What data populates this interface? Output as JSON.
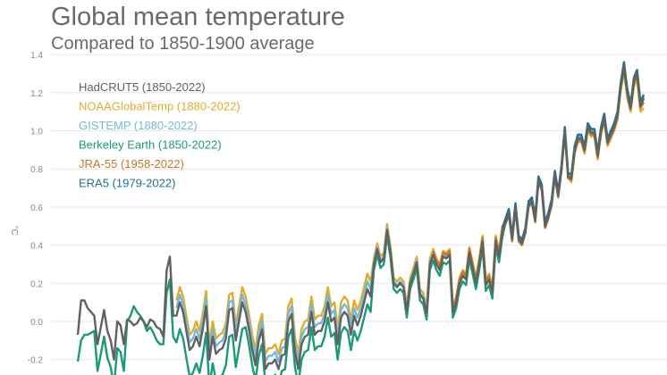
{
  "chart_data": {
    "type": "line",
    "title": "Global mean temperature",
    "subtitle": "Compared to 1850-1900 average",
    "xlabel": "",
    "ylabel": "°C",
    "xlim": [
      1850,
      2022
    ],
    "ylim": [
      -0.2,
      1.4
    ],
    "yticks": [
      "1.4",
      "1.2",
      "1.0",
      "0.8",
      "0.6",
      "0.4",
      "0.2",
      "0.0",
      "-0.2"
    ],
    "ytick_values": [
      1.4,
      1.2,
      1.0,
      0.8,
      0.6,
      0.4,
      0.2,
      0.0,
      -0.2
    ],
    "grid": true,
    "legend_position": "top-left",
    "series": [
      {
        "name": "NOAAGlobalTemp (1880-2022)",
        "color": "#e0ad2b",
        "start": 1880,
        "values": [
          0.11,
          0.18,
          0.13,
          0.03,
          -0.07,
          -0.05,
          0.0,
          -0.05,
          0.04,
          0.16,
          -0.12,
          0.0,
          -0.09,
          -0.07,
          -0.06,
          -0.01,
          0.14,
          0.15,
          -0.02,
          0.08,
          0.18,
          0.13,
          0.04,
          -0.07,
          -0.15,
          -0.02,
          0.04,
          -0.17,
          -0.14,
          -0.14,
          -0.12,
          -0.17,
          -0.1,
          -0.09,
          0.08,
          0.12,
          -0.08,
          -0.17,
          -0.04,
          0.0,
          0.01,
          0.13,
          0.01,
          0.03,
          0.03,
          0.08,
          0.18,
          0.08,
          0.1,
          -0.04,
          0.1,
          0.13,
          0.11,
          0.01,
          0.11,
          0.06,
          0.11,
          0.18,
          0.25,
          0.21,
          0.33,
          0.41,
          0.34,
          0.36,
          0.51,
          0.4,
          0.23,
          0.21,
          0.23,
          0.21,
          0.08,
          0.23,
          0.28,
          0.34,
          0.17,
          0.15,
          0.07,
          0.33,
          0.38,
          0.33,
          0.3,
          0.37,
          0.36,
          0.38,
          0.08,
          0.13,
          0.23,
          0.27,
          0.25,
          0.39,
          0.31,
          0.23,
          0.33,
          0.45,
          0.22,
          0.25,
          0.18,
          0.45,
          0.37,
          0.5,
          0.52,
          0.57,
          0.43,
          0.6,
          0.43,
          0.41,
          0.47,
          0.61,
          0.63,
          0.53,
          0.74,
          0.7,
          0.5,
          0.55,
          0.62,
          0.77,
          0.66,
          0.8,
          1.0,
          0.76,
          0.73,
          0.88,
          0.94,
          0.94,
          0.88,
          1.0,
          0.97,
          0.97,
          0.85,
          0.98,
          1.05,
          0.92,
          0.96,
          1.0,
          1.06,
          1.21,
          1.31,
          1.17,
          1.1,
          1.23,
          1.27,
          1.1,
          1.12
        ]
      },
      {
        "name": "GISTEMP (1880-2022)",
        "color": "#74b9d9",
        "start": 1880,
        "values": [
          0.07,
          0.14,
          0.09,
          -0.01,
          -0.11,
          -0.09,
          -0.04,
          -0.09,
          0.0,
          0.12,
          -0.16,
          -0.04,
          -0.13,
          -0.11,
          -0.1,
          -0.05,
          0.1,
          0.11,
          -0.06,
          0.04,
          0.14,
          0.09,
          0.0,
          -0.11,
          -0.19,
          -0.06,
          0.0,
          -0.21,
          -0.18,
          -0.18,
          -0.16,
          -0.21,
          -0.14,
          -0.13,
          0.04,
          0.08,
          -0.12,
          -0.21,
          -0.08,
          -0.04,
          -0.03,
          0.09,
          -0.03,
          -0.01,
          -0.01,
          0.04,
          0.14,
          0.04,
          0.06,
          -0.08,
          0.06,
          0.09,
          0.07,
          -0.03,
          0.07,
          0.02,
          0.07,
          0.14,
          0.21,
          0.17,
          0.31,
          0.39,
          0.32,
          0.34,
          0.49,
          0.38,
          0.21,
          0.19,
          0.21,
          0.19,
          0.06,
          0.21,
          0.26,
          0.32,
          0.15,
          0.13,
          0.05,
          0.31,
          0.36,
          0.31,
          0.28,
          0.35,
          0.34,
          0.36,
          0.06,
          0.11,
          0.21,
          0.25,
          0.23,
          0.37,
          0.29,
          0.21,
          0.31,
          0.43,
          0.2,
          0.23,
          0.16,
          0.43,
          0.35,
          0.48,
          0.53,
          0.58,
          0.44,
          0.61,
          0.44,
          0.42,
          0.48,
          0.62,
          0.64,
          0.54,
          0.75,
          0.71,
          0.51,
          0.56,
          0.63,
          0.78,
          0.67,
          0.81,
          1.01,
          0.77,
          0.76,
          0.91,
          0.97,
          0.97,
          0.91,
          1.03,
          1.0,
          1.0,
          0.88,
          1.01,
          1.08,
          0.95,
          0.99,
          1.03,
          1.09,
          1.24,
          1.35,
          1.21,
          1.13,
          1.27,
          1.31,
          1.14,
          1.18
        ]
      },
      {
        "name": "JRA-55 (1958-2022)",
        "color": "#c47a2c",
        "start": 1958,
        "values": [
          0.37,
          0.32,
          0.29,
          0.36,
          0.35,
          0.37,
          0.07,
          0.12,
          0.22,
          0.26,
          0.24,
          0.38,
          0.3,
          0.22,
          0.32,
          0.44,
          0.21,
          0.24,
          0.17,
          0.44,
          0.36,
          0.49,
          0.51,
          0.56,
          0.42,
          0.59,
          0.42,
          0.4,
          0.46,
          0.6,
          0.62,
          0.52,
          0.73,
          0.69,
          0.49,
          0.54,
          0.61,
          0.76,
          0.65,
          0.79,
          0.99,
          0.75,
          0.74,
          0.89,
          0.95,
          0.95,
          0.89,
          1.01,
          0.98,
          0.98,
          0.86,
          0.99,
          1.06,
          0.93,
          0.97,
          1.01,
          1.07,
          1.22,
          1.33,
          1.19,
          1.11,
          1.25,
          1.29,
          1.12,
          1.15
        ]
      },
      {
        "name": "ERA5 (1979-2022)",
        "color": "#1f6f98",
        "start": 1979,
        "values": [
          0.49,
          0.54,
          0.59,
          0.45,
          0.62,
          0.45,
          0.43,
          0.49,
          0.63,
          0.65,
          0.55,
          0.76,
          0.72,
          0.52,
          0.57,
          0.64,
          0.79,
          0.68,
          0.82,
          1.02,
          0.78,
          0.77,
          0.92,
          0.98,
          0.98,
          0.92,
          1.04,
          1.01,
          1.01,
          0.89,
          1.02,
          1.09,
          0.96,
          1.0,
          1.04,
          1.1,
          1.25,
          1.36,
          1.22,
          1.14,
          1.28,
          1.32,
          1.15,
          1.19
        ]
      },
      {
        "name": "Berkeley Earth (1850-2022)",
        "color": "#1b9a78",
        "start": 1850,
        "values": [
          -0.21,
          -0.1,
          -0.07,
          -0.07,
          -0.06,
          -0.05,
          -0.26,
          -0.17,
          -0.08,
          -0.19,
          -0.24,
          -0.34,
          -0.14,
          -0.16,
          -0.26,
          0.0,
          0.03,
          0.08,
          0.05,
          0.03,
          0.0,
          -0.05,
          -0.03,
          -0.06,
          -0.1,
          -0.12,
          -0.12,
          0.15,
          0.22,
          -0.08,
          -0.11,
          -0.04,
          -0.09,
          -0.19,
          -0.29,
          -0.27,
          -0.22,
          -0.27,
          -0.18,
          -0.06,
          -0.34,
          -0.22,
          -0.31,
          -0.29,
          -0.28,
          -0.23,
          -0.08,
          -0.07,
          -0.24,
          -0.14,
          -0.04,
          -0.03,
          -0.12,
          -0.23,
          -0.31,
          -0.18,
          -0.12,
          -0.33,
          -0.3,
          -0.3,
          -0.28,
          -0.33,
          -0.26,
          -0.25,
          -0.08,
          -0.04,
          -0.24,
          -0.33,
          -0.2,
          -0.16,
          -0.15,
          -0.03,
          -0.15,
          -0.13,
          -0.13,
          -0.08,
          0.02,
          -0.08,
          -0.06,
          -0.2,
          -0.06,
          -0.03,
          -0.05,
          -0.15,
          -0.05,
          -0.1,
          -0.05,
          0.02,
          0.09,
          0.05,
          0.27,
          0.35,
          0.28,
          0.3,
          0.45,
          0.34,
          0.17,
          0.15,
          0.17,
          0.15,
          0.02,
          0.17,
          0.22,
          0.28,
          0.11,
          0.09,
          0.01,
          0.27,
          0.32,
          0.27,
          0.24,
          0.31,
          0.3,
          0.32,
          0.02,
          0.07,
          0.17,
          0.21,
          0.19,
          0.33,
          0.25,
          0.17,
          0.27,
          0.39,
          0.16,
          0.19,
          0.12,
          0.39,
          0.31,
          0.44,
          0.52,
          0.57,
          0.43,
          0.6,
          0.43,
          0.41,
          0.47,
          0.61,
          0.63,
          0.53,
          0.74,
          0.7,
          0.5,
          0.55,
          0.62,
          0.77,
          0.66,
          0.8,
          1.0,
          0.76,
          0.75,
          0.9,
          0.96,
          0.96,
          0.9,
          1.02,
          0.99,
          0.99,
          0.87,
          1.0,
          1.07,
          0.94,
          0.98,
          1.02,
          1.08,
          1.23,
          1.34,
          1.2,
          1.12,
          1.26,
          1.3,
          1.13,
          1.17
        ]
      },
      {
        "name": "HadCRUT5 (1850-2022)",
        "color": "#616161",
        "start": 1850,
        "values": [
          -0.07,
          0.11,
          0.11,
          0.07,
          0.05,
          0.03,
          -0.12,
          -0.03,
          0.06,
          -0.05,
          -0.1,
          -0.2,
          0.0,
          -0.02,
          -0.12,
          0.01,
          0.0,
          -0.02,
          -0.01,
          0.02,
          0.0,
          -0.03,
          0.01,
          0.0,
          -0.03,
          -0.04,
          -0.08,
          0.27,
          0.34,
          0.03,
          0.03,
          0.1,
          0.05,
          -0.05,
          -0.15,
          -0.13,
          -0.08,
          -0.13,
          -0.04,
          0.08,
          -0.2,
          -0.08,
          -0.17,
          -0.15,
          -0.14,
          -0.09,
          0.06,
          0.07,
          -0.1,
          0.0,
          0.1,
          0.05,
          -0.04,
          -0.15,
          -0.23,
          -0.1,
          -0.04,
          -0.25,
          -0.22,
          -0.22,
          -0.2,
          -0.25,
          -0.18,
          -0.17,
          0.0,
          0.04,
          -0.16,
          -0.25,
          -0.12,
          -0.08,
          -0.07,
          0.05,
          -0.07,
          -0.05,
          -0.05,
          0.0,
          0.1,
          0.0,
          0.02,
          -0.12,
          0.02,
          0.05,
          0.03,
          -0.07,
          0.03,
          -0.02,
          0.03,
          0.1,
          0.17,
          0.13,
          0.3,
          0.38,
          0.31,
          0.33,
          0.48,
          0.37,
          0.2,
          0.18,
          0.2,
          0.18,
          0.05,
          0.2,
          0.25,
          0.31,
          0.14,
          0.12,
          0.04,
          0.3,
          0.35,
          0.3,
          0.27,
          0.34,
          0.33,
          0.35,
          0.05,
          0.1,
          0.2,
          0.24,
          0.22,
          0.36,
          0.28,
          0.2,
          0.3,
          0.42,
          0.19,
          0.22,
          0.15,
          0.42,
          0.34,
          0.47,
          0.52,
          0.57,
          0.43,
          0.6,
          0.43,
          0.41,
          0.47,
          0.61,
          0.63,
          0.53,
          0.74,
          0.7,
          0.5,
          0.55,
          0.62,
          0.77,
          0.66,
          0.8,
          1.0,
          0.76,
          0.75,
          0.9,
          0.96,
          0.96,
          0.9,
          1.02,
          0.99,
          0.99,
          0.87,
          1.0,
          1.07,
          0.94,
          0.98,
          1.02,
          1.08,
          1.23,
          1.34,
          1.2,
          1.12,
          1.26,
          1.3,
          1.13,
          1.17
        ]
      }
    ],
    "legend_order": [
      5,
      0,
      1,
      4,
      2,
      3
    ]
  }
}
